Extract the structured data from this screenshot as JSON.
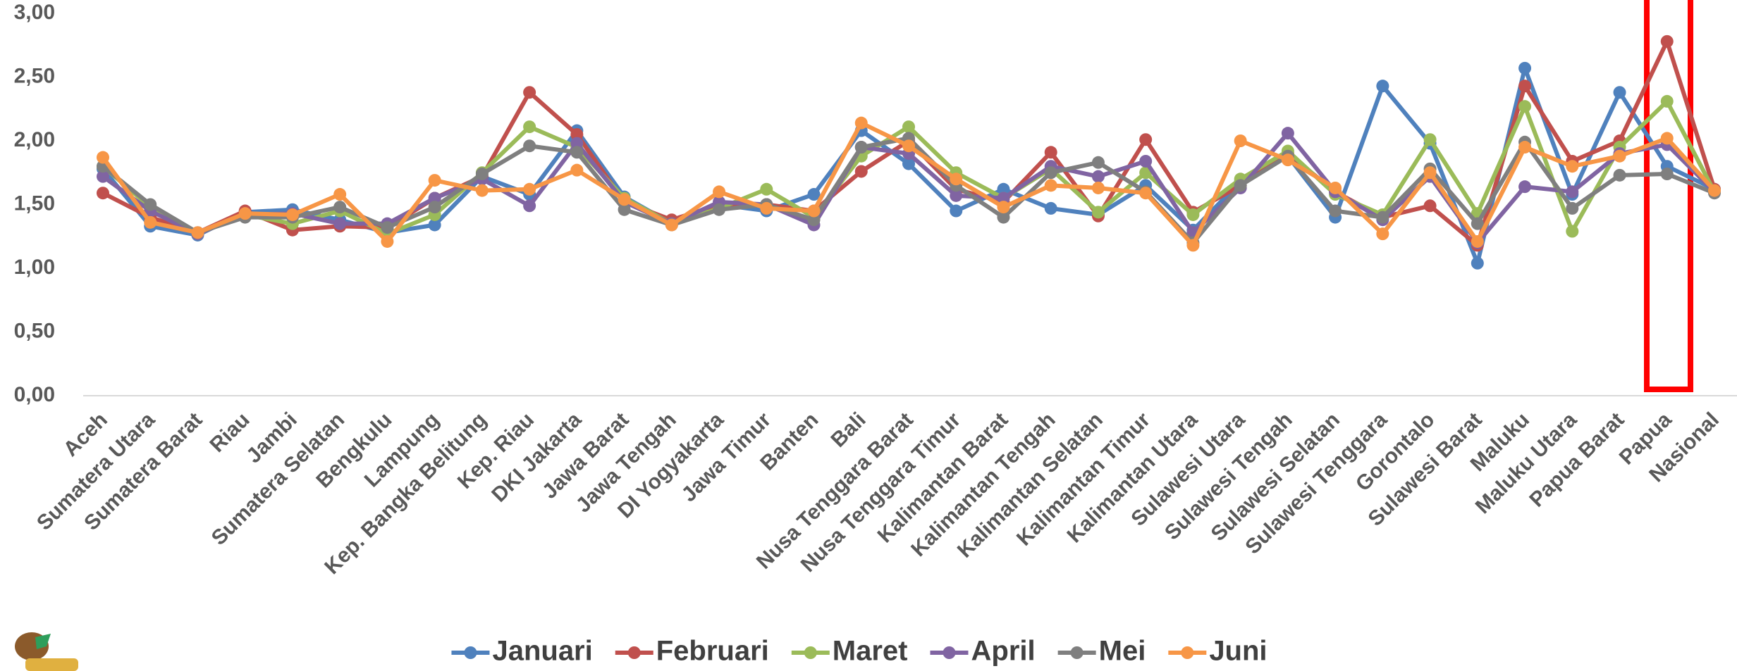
{
  "chart_data": {
    "type": "line",
    "categories": [
      "Aceh",
      "Sumatera Utara",
      "Sumatera Barat",
      "Riau",
      "Jambi",
      "Sumatera Selatan",
      "Bengkulu",
      "Lampung",
      "Kep. Bangka Belitung",
      "Kep. Riau",
      "DKI Jakarta",
      "Jawa Barat",
      "Jawa Tengah",
      "DI Yogyakarta",
      "Jawa Timur",
      "Banten",
      "Bali",
      "Nusa Tenggara Barat",
      "Nusa Tenggara Timur",
      "Kalimantan Barat",
      "Kalimantan Tengah",
      "Kalimantan Selatan",
      "Kalimantan Timur",
      "Kalimantan Utara",
      "Sulawesi Utara",
      "Sulawesi Tengah",
      "Sulawesi Selatan",
      "Sulawesi Tenggara",
      "Gorontalo",
      "Sulawesi Barat",
      "Maluku",
      "Maluku Utara",
      "Papua Barat",
      "Papua",
      "Nasional"
    ],
    "series": [
      {
        "name": "Januari",
        "color": "#4f81bd",
        "values": [
          1.78,
          1.33,
          1.26,
          1.44,
          1.46,
          1.38,
          1.28,
          1.34,
          1.72,
          1.58,
          2.08,
          1.56,
          1.35,
          1.5,
          1.45,
          1.58,
          2.08,
          1.82,
          1.45,
          1.62,
          1.47,
          1.42,
          1.65,
          1.3,
          1.68,
          1.88,
          1.4,
          2.43,
          1.98,
          1.04,
          2.57,
          1.58,
          2.38,
          1.8,
          1.62
        ]
      },
      {
        "name": "Februari",
        "color": "#c0504d",
        "values": [
          1.59,
          1.4,
          1.28,
          1.45,
          1.3,
          1.33,
          1.32,
          1.55,
          1.72,
          2.38,
          2.05,
          1.52,
          1.38,
          1.5,
          1.5,
          1.45,
          1.76,
          2.0,
          1.62,
          1.52,
          1.91,
          1.41,
          2.01,
          1.44,
          1.65,
          1.9,
          1.6,
          1.4,
          1.49,
          1.18,
          2.43,
          1.84,
          2.0,
          2.78,
          1.62
        ]
      },
      {
        "name": "Maret",
        "color": "#9bbb59",
        "values": [
          1.8,
          1.48,
          1.27,
          1.42,
          1.35,
          1.45,
          1.27,
          1.42,
          1.75,
          2.11,
          1.95,
          1.55,
          1.35,
          1.47,
          1.62,
          1.4,
          1.88,
          2.11,
          1.75,
          1.55,
          1.78,
          1.44,
          1.75,
          1.42,
          1.7,
          1.92,
          1.58,
          1.42,
          2.01,
          1.43,
          2.27,
          1.29,
          1.95,
          2.31,
          1.6
        ]
      },
      {
        "name": "April",
        "color": "#8064a2",
        "values": [
          1.72,
          1.45,
          1.27,
          1.42,
          1.43,
          1.35,
          1.35,
          1.55,
          1.7,
          1.49,
          1.98,
          1.52,
          1.35,
          1.52,
          1.5,
          1.34,
          1.95,
          1.9,
          1.57,
          1.55,
          1.8,
          1.72,
          1.84,
          1.28,
          1.63,
          2.06,
          1.6,
          1.38,
          1.72,
          1.2,
          1.64,
          1.6,
          1.9,
          1.97,
          1.6
        ]
      },
      {
        "name": "Mei",
        "color": "#7f7f7f",
        "values": [
          1.8,
          1.5,
          1.28,
          1.4,
          1.4,
          1.48,
          1.32,
          1.48,
          1.74,
          1.96,
          1.91,
          1.46,
          1.34,
          1.46,
          1.5,
          1.38,
          1.95,
          2.02,
          1.65,
          1.4,
          1.75,
          1.83,
          1.6,
          1.2,
          1.65,
          1.88,
          1.45,
          1.4,
          1.78,
          1.35,
          1.99,
          1.47,
          1.73,
          1.74,
          1.59
        ]
      },
      {
        "name": "Juni",
        "color": "#f79646",
        "values": [
          1.87,
          1.36,
          1.28,
          1.43,
          1.42,
          1.58,
          1.21,
          1.69,
          1.61,
          1.62,
          1.77,
          1.54,
          1.34,
          1.6,
          1.47,
          1.45,
          2.14,
          1.96,
          1.7,
          1.48,
          1.65,
          1.63,
          1.59,
          1.18,
          2.0,
          1.85,
          1.63,
          1.27,
          1.75,
          1.21,
          1.95,
          1.8,
          1.88,
          2.02,
          1.61
        ]
      }
    ],
    "ylim": [
      0,
      3
    ],
    "yticks": [
      {
        "value": 0,
        "label": "0,00"
      },
      {
        "value": 0.5,
        "label": "0,50"
      },
      {
        "value": 1,
        "label": "1,00"
      },
      {
        "value": 1.5,
        "label": "1,50"
      },
      {
        "value": 2,
        "label": "2,00"
      },
      {
        "value": 2.5,
        "label": "2,50"
      },
      {
        "value": 3,
        "label": "3,00"
      }
    ],
    "legend": "bottom"
  }
}
